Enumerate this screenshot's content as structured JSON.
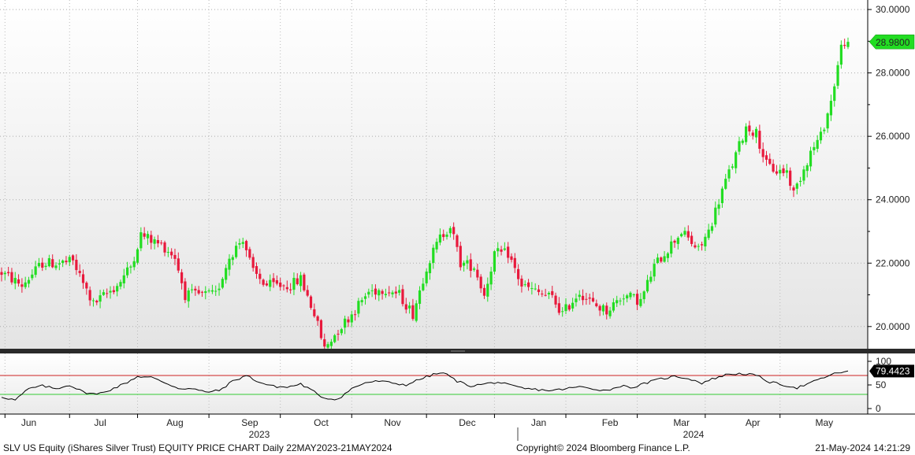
{
  "chart_data": [
    {
      "type": "candlestick",
      "ylim": [
        19.3,
        30.3
      ],
      "yticks": [
        "30.0000",
        "28.0000",
        "26.0000",
        "24.0000",
        "22.0000",
        "20.0000"
      ],
      "ytick_values": [
        30,
        28,
        26,
        24,
        22,
        20
      ],
      "last_price_label": "28.9800",
      "last_price": 28.98,
      "up_color": "#22dd22",
      "down_color": "#e8193c",
      "x_month_labels": [
        "Jun",
        "Jul",
        "Aug",
        "Sep",
        "Oct",
        "Nov",
        "Dec",
        "Jan",
        "Feb",
        "Mar",
        "Apr",
        "May"
      ],
      "x_year_labels": [
        "2023",
        "2024"
      ],
      "anchors": [
        [
          0,
          21.7
        ],
        [
          6,
          21.3
        ],
        [
          12,
          22.0
        ],
        [
          17,
          22.0
        ],
        [
          21,
          22.05
        ],
        [
          24,
          21.35
        ],
        [
          27,
          20.7
        ],
        [
          34,
          21.3
        ],
        [
          38,
          21.9
        ],
        [
          41,
          22.9
        ],
        [
          48,
          22.5
        ],
        [
          51,
          22.2
        ],
        [
          54,
          21.0
        ],
        [
          60,
          21.0
        ],
        [
          63,
          21.0
        ],
        [
          67,
          22.2
        ],
        [
          71,
          22.8
        ],
        [
          74,
          21.7
        ],
        [
          78,
          21.3
        ],
        [
          85,
          21.3
        ],
        [
          88,
          21.5
        ],
        [
          92,
          20.4
        ],
        [
          95,
          19.3
        ],
        [
          99,
          19.9
        ],
        [
          103,
          20.4
        ],
        [
          108,
          21.1
        ],
        [
          113,
          21.2
        ],
        [
          117,
          21.0
        ],
        [
          121,
          20.4
        ],
        [
          125,
          21.9
        ],
        [
          129,
          22.8
        ],
        [
          132,
          23.2
        ],
        [
          135,
          22.0
        ],
        [
          139,
          21.9
        ],
        [
          142,
          21.0
        ],
        [
          145,
          22.3
        ],
        [
          149,
          22.3
        ],
        [
          153,
          21.3
        ],
        [
          157,
          21.1
        ],
        [
          162,
          20.9
        ],
        [
          165,
          20.4
        ],
        [
          170,
          21.1
        ],
        [
          174,
          20.7
        ],
        [
          178,
          20.5
        ],
        [
          183,
          21.0
        ],
        [
          188,
          20.8
        ],
        [
          192,
          21.9
        ],
        [
          197,
          22.6
        ],
        [
          200,
          23.0
        ],
        [
          205,
          22.4
        ],
        [
          208,
          23.0
        ],
        [
          212,
          24.3
        ],
        [
          216,
          25.4
        ],
        [
          219,
          26.3
        ],
        [
          222,
          26.1
        ],
        [
          225,
          25.1
        ],
        [
          228,
          24.9
        ],
        [
          231,
          24.9
        ],
        [
          233,
          24.2
        ],
        [
          236,
          25.0
        ],
        [
          238,
          25.5
        ],
        [
          241,
          26.0
        ],
        [
          244,
          27.1
        ],
        [
          247,
          28.8
        ],
        [
          249,
          29.2
        ]
      ],
      "rsi": {
        "ylim": [
          0,
          100
        ],
        "yticks": [
          "100",
          "50",
          "0"
        ],
        "ytick_values": [
          100,
          50,
          0
        ],
        "upper": 70,
        "lower": 30,
        "last_label": "79.4423",
        "last_value": 79.44,
        "line_color": "#000000",
        "upper_color": "#cc2222",
        "lower_color": "#33cc33",
        "anchors": [
          [
            0,
            25
          ],
          [
            4,
            18
          ],
          [
            8,
            42
          ],
          [
            12,
            48
          ],
          [
            16,
            42
          ],
          [
            20,
            50
          ],
          [
            24,
            35
          ],
          [
            28,
            30
          ],
          [
            32,
            40
          ],
          [
            36,
            52
          ],
          [
            40,
            68
          ],
          [
            44,
            66
          ],
          [
            48,
            55
          ],
          [
            52,
            43
          ],
          [
            56,
            42
          ],
          [
            60,
            35
          ],
          [
            64,
            38
          ],
          [
            68,
            58
          ],
          [
            72,
            70
          ],
          [
            76,
            55
          ],
          [
            80,
            47
          ],
          [
            84,
            45
          ],
          [
            88,
            52
          ],
          [
            92,
            35
          ],
          [
            95,
            22
          ],
          [
            99,
            20
          ],
          [
            103,
            42
          ],
          [
            107,
            55
          ],
          [
            111,
            58
          ],
          [
            115,
            54
          ],
          [
            119,
            50
          ],
          [
            123,
            62
          ],
          [
            127,
            72
          ],
          [
            130,
            76
          ],
          [
            134,
            58
          ],
          [
            138,
            48
          ],
          [
            142,
            52
          ],
          [
            146,
            56
          ],
          [
            150,
            48
          ],
          [
            154,
            42
          ],
          [
            158,
            40
          ],
          [
            162,
            38
          ],
          [
            166,
            42
          ],
          [
            170,
            46
          ],
          [
            174,
            42
          ],
          [
            178,
            38
          ],
          [
            182,
            48
          ],
          [
            186,
            45
          ],
          [
            190,
            55
          ],
          [
            194,
            63
          ],
          [
            198,
            68
          ],
          [
            202,
            64
          ],
          [
            206,
            54
          ],
          [
            210,
            65
          ],
          [
            214,
            73
          ],
          [
            218,
            74
          ],
          [
            222,
            70
          ],
          [
            226,
            56
          ],
          [
            230,
            50
          ],
          [
            234,
            44
          ],
          [
            238,
            54
          ],
          [
            242,
            66
          ],
          [
            246,
            76
          ],
          [
            249,
            79
          ]
        ]
      }
    }
  ],
  "footer": {
    "left": "SLV US Equity (iShares Silver Trust) EQUITY PRICE CHART  Daily 22MAY2023-21MAY2024",
    "center": "Copyright© 2024 Bloomberg Finance L.P.",
    "right": "21-May-2024 14:21:29"
  }
}
